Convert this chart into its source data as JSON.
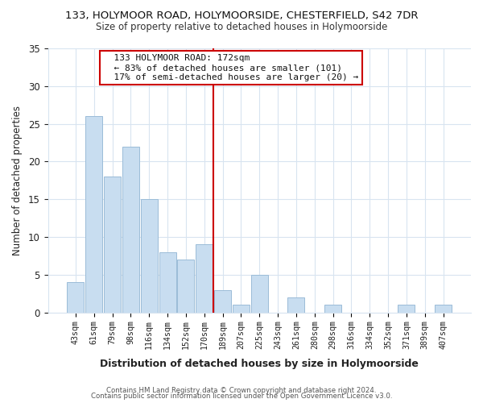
{
  "title": "133, HOLYMOOR ROAD, HOLYMOORSIDE, CHESTERFIELD, S42 7DR",
  "subtitle": "Size of property relative to detached houses in Holymoorside",
  "xlabel": "Distribution of detached houses by size in Holymoorside",
  "ylabel": "Number of detached properties",
  "footer_line1": "Contains HM Land Registry data © Crown copyright and database right 2024.",
  "footer_line2": "Contains public sector information licensed under the Open Government Licence v3.0.",
  "bar_labels": [
    "43sqm",
    "61sqm",
    "79sqm",
    "98sqm",
    "116sqm",
    "134sqm",
    "152sqm",
    "170sqm",
    "189sqm",
    "207sqm",
    "225sqm",
    "243sqm",
    "261sqm",
    "280sqm",
    "298sqm",
    "316sqm",
    "334sqm",
    "352sqm",
    "371sqm",
    "389sqm",
    "407sqm"
  ],
  "bar_values": [
    4,
    26,
    18,
    22,
    15,
    8,
    7,
    9,
    3,
    1,
    5,
    0,
    2,
    0,
    1,
    0,
    0,
    0,
    1,
    0,
    1
  ],
  "bar_color": "#c8ddf0",
  "bar_edgecolor": "#9bbcd8",
  "reference_line_index": 7,
  "reference_line_color": "#cc0000",
  "ylim": [
    0,
    35
  ],
  "yticks": [
    0,
    5,
    10,
    15,
    20,
    25,
    30,
    35
  ],
  "annotation_title": "133 HOLYMOOR ROAD: 172sqm",
  "annotation_line1": "← 83% of detached houses are smaller (101)",
  "annotation_line2": "17% of semi-detached houses are larger (20) →",
  "annotation_box_color": "#ffffff",
  "annotation_box_edgecolor": "#cc0000",
  "background_color": "#ffffff",
  "grid_color": "#d8e4f0"
}
